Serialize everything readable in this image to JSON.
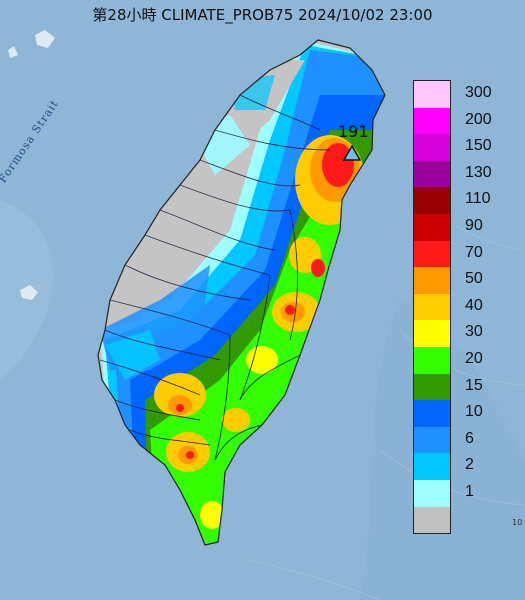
{
  "title": "第28小時 CLIMATE_PROB75 2024/10/02 23:00",
  "strait_label": "Formosa Strait",
  "peak_label": "191",
  "edge_label": "10",
  "legend": [
    {
      "label": "300",
      "color": "#ffc6f7"
    },
    {
      "label": "200",
      "color": "#ff00ff"
    },
    {
      "label": "150",
      "color": "#d400d9"
    },
    {
      "label": "130",
      "color": "#9a009a"
    },
    {
      "label": "110",
      "color": "#990000"
    },
    {
      "label": "90",
      "color": "#cc0000"
    },
    {
      "label": "70",
      "color": "#ff1a1a"
    },
    {
      "label": "50",
      "color": "#ff9900"
    },
    {
      "label": "40",
      "color": "#ffcc00"
    },
    {
      "label": "30",
      "color": "#ffff00"
    },
    {
      "label": "20",
      "color": "#33ff00"
    },
    {
      "label": "15",
      "color": "#339900"
    },
    {
      "label": "10",
      "color": "#0066ff"
    },
    {
      "label": "6",
      "color": "#1e90ff"
    },
    {
      "label": "2",
      "color": "#00c8ff"
    },
    {
      "label": "1",
      "color": "#9ffcff"
    },
    {
      "label": "",
      "color": "#c0c0c0"
    }
  ],
  "colors": {
    "sea": "#8fb6d6",
    "no_rain": "#c4c4c4",
    "peak_marker": "#6cc0ff"
  }
}
